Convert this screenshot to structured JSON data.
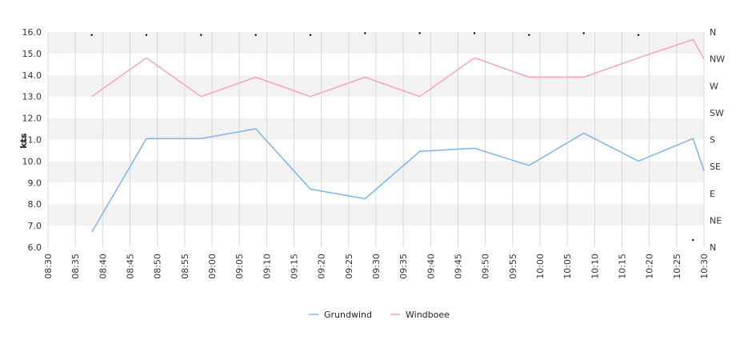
{
  "chart_data": {
    "type": "line",
    "ylabel": "kts",
    "ylim": [
      6.0,
      16.0
    ],
    "yticks": [
      "6.0",
      "7.0",
      "8.0",
      "9.0",
      "10.0",
      "11.0",
      "12.0",
      "13.0",
      "14.0",
      "15.0",
      "16.0"
    ],
    "xlim_minutes": [
      0,
      120
    ],
    "xticks": [
      "08:30",
      "08:35",
      "08:40",
      "08:45",
      "08:50",
      "08:55",
      "09:00",
      "09:05",
      "09:10",
      "09:15",
      "09:20",
      "09:25",
      "09:30",
      "09:35",
      "09:40",
      "09:45",
      "09:50",
      "09:55",
      "10:00",
      "10:05",
      "10:10",
      "10:15",
      "10:20",
      "10:25",
      "10:30"
    ],
    "x": [
      "08:38",
      "08:48",
      "08:58",
      "09:08",
      "09:18",
      "09:28",
      "09:38",
      "09:48",
      "09:58",
      "10:08",
      "10:18",
      "10:28",
      "10:30"
    ],
    "right_axis": {
      "labels": [
        "N",
        "NW",
        "W",
        "SW",
        "S",
        "SE",
        "E",
        "NE",
        "N"
      ],
      "range": [
        0,
        360
      ]
    },
    "series": [
      {
        "name": "Grundwind",
        "color": "#7cb5ec",
        "values": [
          6.7,
          11.05,
          11.05,
          11.5,
          8.7,
          8.25,
          10.45,
          10.6,
          9.8,
          11.3,
          10.0,
          11.05,
          9.55
        ]
      },
      {
        "name": "Windboee",
        "color": "#f7a1c4",
        "values": [
          13.0,
          14.8,
          13.0,
          13.9,
          13.0,
          13.9,
          13.0,
          14.8,
          13.9,
          13.9,
          14.8,
          15.65,
          14.75
        ]
      }
    ],
    "direction_points_deg": [
      355,
      355,
      355,
      355,
      355,
      358,
      358,
      358,
      355,
      358,
      355,
      12
    ],
    "grid": true,
    "legend_position": "bottom-center"
  }
}
